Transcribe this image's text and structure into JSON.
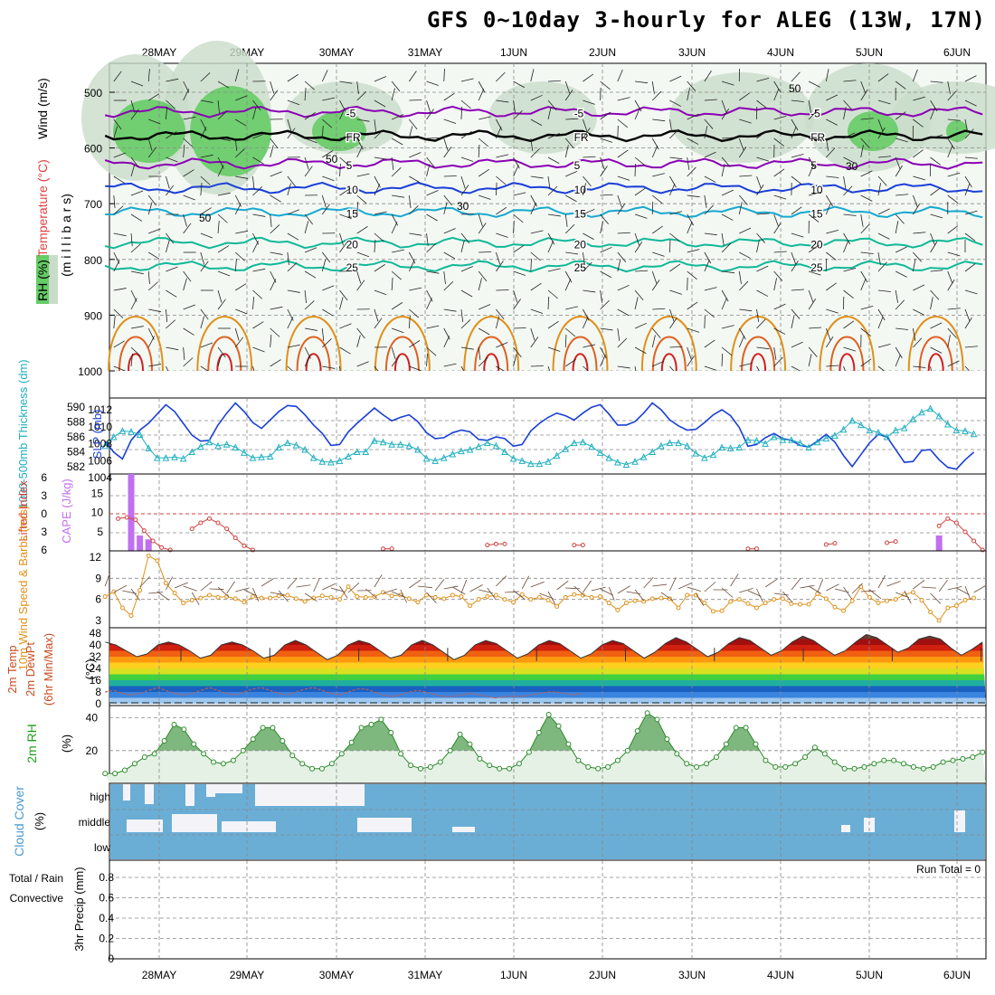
{
  "title": "GFS 0~10day 3-hourly for ALEG (13W, 17N)",
  "dates": [
    "28MAY",
    "29MAY",
    "30MAY",
    "31MAY",
    "1JUN",
    "2JUN",
    "3JUN",
    "4JUN",
    "5JUN",
    "6JUN"
  ],
  "colors": {
    "purple": "#8a00b4",
    "blue": "#1a3fd8",
    "cyan": "#18a8d0",
    "teal": "#10b898",
    "orange": "#e0901a",
    "red": "#d02020",
    "green": "#40c040",
    "cloud": "#6aaed6",
    "slp": "#1a3fd8",
    "thick": "#20b0c0",
    "cape": "#c070f0",
    "li": "#d04040",
    "wind10": "#e0901a",
    "rh": "#2a8a2a"
  },
  "chart_data": [
    {
      "type": "contour",
      "id": "upper-air",
      "ylabel_parts": [
        "RH (%)",
        "Temperature (°C)",
        "Wind (m/s)"
      ],
      "ylabel2": "(m i l l i b a r s)",
      "yticks": [
        500,
        600,
        700,
        800,
        900,
        1000
      ],
      "temperature_contours": [
        {
          "value": -5,
          "label": "-5",
          "color": "purple",
          "level_mb": 535
        },
        {
          "value": 0,
          "label": "FR",
          "color": "black",
          "level_mb": 578
        },
        {
          "value": 5,
          "label": "5",
          "color": "purple",
          "level_mb": 628
        },
        {
          "value": 10,
          "label": "10",
          "color": "blue",
          "level_mb": 672
        },
        {
          "value": 15,
          "label": "15",
          "color": "cyan",
          "level_mb": 715
        },
        {
          "value": 20,
          "label": "20",
          "color": "teal",
          "level_mb": 770
        },
        {
          "value": 25,
          "label": "25",
          "color": "teal",
          "level_mb": 812
        }
      ],
      "rh_labels": [
        "50",
        "30"
      ]
    },
    {
      "type": "line",
      "id": "slp-thickness",
      "ylabel_left": "1000-500mb Thickness (dm)",
      "ylabel_right": "SLP (mb)",
      "thickness_ticks": [
        582,
        584,
        586,
        588,
        590
      ],
      "slp_ticks": [
        1004,
        1006,
        1008,
        1010,
        1012
      ],
      "series": [
        {
          "name": "SLP (mb)",
          "values": [
            1008.3,
            1007.0,
            1006.2,
            1008.4,
            1009.6,
            1010.4,
            1011.5,
            1012.6,
            1011.8,
            1010.4,
            1009.0,
            1008.3,
            1008.4,
            1010.2,
            1011.6,
            1012.8,
            1011.8,
            1010.5,
            1009.8,
            1010.8,
            1011.8,
            1012.5,
            1012.4,
            1011.4,
            1010.2,
            1009.2,
            1007.8,
            1007.9,
            1009.4,
            1010.4,
            1011.3,
            1012.2,
            1011.4,
            1010.7,
            1011.1,
            1011.4,
            1010.6,
            1009.3,
            1008.6,
            1008.7,
            1009.3,
            1009.6,
            1009.4,
            1008.5,
            1008.4,
            1008.8,
            1008.6,
            1007.7,
            1007.9,
            1009.5,
            1010.4,
            1011.1,
            1011.6,
            1011.3,
            1010.8,
            1011.6,
            1012.3,
            1012.6,
            1011.5,
            1010.2,
            1010.2,
            1010.6,
            1011.6,
            1012.8,
            1012.0,
            1010.8,
            1010.1,
            1009.6,
            1009.7,
            1010.5,
            1011.4,
            1012.0,
            1011.3,
            1009.9,
            1007.7,
            1007.9,
            1008.7,
            1009.2,
            1008.6,
            1008.4,
            1007.8,
            1007.6,
            1008.3,
            1009.1,
            1008.2,
            1006.6,
            1005.3,
            1006.7,
            1008.1,
            1009.1,
            1008.8,
            1007.3,
            1005.8,
            1005.9,
            1007.2,
            1007.3,
            1006.1,
            1005.2,
            1005.0,
            1006.1,
            1007.0
          ]
        },
        {
          "name": "1000-500mb Thickness (dm)",
          "values": [
            584.8,
            586.0,
            586.8,
            586.7,
            586.3,
            584.5,
            583.2,
            583.2,
            583.3,
            583.1,
            584.0,
            584.7,
            585.3,
            584.8,
            585.0,
            584.6,
            583.9,
            583.2,
            583.3,
            583.4,
            584.6,
            585.2,
            584.9,
            584.3,
            583.2,
            582.7,
            582.6,
            582.8,
            583.4,
            584.0,
            584.0,
            585.5,
            585.3,
            585.0,
            585.0,
            584.8,
            584.3,
            583.1,
            582.8,
            583.2,
            583.7,
            584.1,
            584.3,
            584.7,
            585.2,
            584.8,
            584.0,
            583.1,
            582.8,
            582.4,
            582.4,
            582.7,
            583.5,
            584.4,
            585.2,
            585.3,
            584.7,
            583.9,
            583.2,
            582.6,
            582.3,
            582.7,
            583.3,
            584.0,
            584.8,
            585.2,
            585.2,
            584.8,
            583.8,
            583.2,
            583.6,
            584.6,
            584.5,
            584.6,
            585.6,
            585.5,
            585.1,
            586.0,
            585.6,
            585.6,
            585.2,
            584.6,
            585.3,
            585.8,
            586.2,
            587.0,
            588.2,
            587.6,
            586.9,
            586.6,
            586.0,
            586.9,
            587.2,
            588.4,
            589.3,
            589.8,
            588.8,
            587.7,
            586.9,
            586.8,
            586.4
          ]
        }
      ]
    },
    {
      "type": "bar",
      "id": "cape-li",
      "ylabel_left": "Lifted Index",
      "ylabel_right": "CAPE (J/kg)",
      "li_ticks": [
        -6,
        -3,
        0,
        3,
        6
      ],
      "cape_ticks": [
        5,
        10,
        15
      ],
      "cape_bars": [
        {
          "x": 3,
          "value": 20
        },
        {
          "x": 4,
          "value": 4
        },
        {
          "x": 5,
          "value": 3
        },
        {
          "x": 96,
          "value": 4
        }
      ],
      "li_segments": [
        [
          1.5,
          0.8,
          0.6,
          1.0,
          2.8,
          4.5,
          5.6,
          6.0
        ],
        [
          10,
          2.5,
          1.5,
          0.8,
          1.5,
          2.5,
          4.0,
          5.3,
          6.0
        ],
        [
          32,
          5.8,
          5.8
        ],
        [
          44,
          5.2,
          5.0,
          5.0
        ],
        [
          54,
          5.2,
          5.2
        ],
        [
          74,
          5.8,
          5.8
        ],
        [
          83,
          5.1,
          4.9
        ],
        [
          90,
          4.8,
          4.6
        ],
        [
          96,
          2.0,
          0.8,
          1.5,
          3.0,
          4.5,
          6.0
        ]
      ]
    },
    {
      "type": "line",
      "id": "wind10",
      "ylabel": "10m Wind Speed & Barbs (m/s)",
      "yticks": [
        3,
        6,
        9,
        12
      ],
      "series": [
        {
          "name": "10m Wind Speed",
          "values": [
            6.4,
            7.1,
            4.8,
            3.7,
            7.3,
            12.2,
            11.5,
            8.3,
            6.9,
            5.5,
            5.9,
            6.2,
            6.6,
            6.3,
            6.4,
            6.1,
            5.6,
            6.4,
            6.2,
            6.2,
            6.5,
            6.6,
            6.1,
            5.7,
            6.2,
            6.5,
            6.3,
            6.0,
            7.8,
            6.4,
            6.3,
            6.4,
            7.0,
            6.5,
            6.6,
            6.1,
            5.6,
            6.6,
            6.3,
            6.1,
            6.6,
            6.4,
            5.1,
            6.0,
            6.4,
            6.6,
            6.0,
            5.6,
            6.7,
            6.0,
            6.3,
            5.9,
            5.0,
            6.3,
            6.7,
            6.6,
            6.3,
            6.4,
            5.5,
            4.5,
            5.5,
            5.8,
            5.7,
            6.1,
            6.2,
            6.1,
            4.8,
            6.6,
            6.6,
            5.5,
            4.3,
            4.4,
            5.7,
            6.0,
            5.4,
            4.8,
            5.5,
            6.0,
            6.1,
            5.4,
            5.3,
            5.3,
            6.8,
            6.1,
            4.9,
            4.4,
            5.8,
            7.8,
            6.3,
            5.5,
            5.8,
            6.0,
            6.7,
            7.0,
            5.9,
            4.2,
            3.0,
            4.8,
            5.1,
            5.9,
            6.2
          ]
        }
      ]
    },
    {
      "type": "area",
      "id": "temp",
      "ylabel": [
        "2m Temp",
        "2m DewPt",
        "(6hr Min/Max)"
      ],
      "yunit": "(°C)",
      "yticks": [
        0,
        8,
        16,
        24,
        32,
        40,
        48
      ],
      "series": [
        {
          "name": "2m Temp",
          "values": [
            42,
            40,
            36,
            32,
            34,
            40,
            42,
            40,
            36,
            31,
            33,
            40,
            42,
            40,
            36,
            31,
            33,
            40,
            43,
            40,
            35,
            30,
            33,
            40,
            43,
            41,
            36,
            31,
            33,
            40,
            43,
            40,
            35,
            30,
            33,
            40,
            43,
            41,
            36,
            31,
            34,
            40,
            43,
            41,
            36,
            31,
            34,
            40,
            43,
            41,
            36,
            31,
            35,
            41,
            45,
            42,
            37,
            32,
            35,
            41,
            45,
            43,
            38,
            33,
            36,
            42,
            46,
            43,
            38,
            33,
            36,
            42,
            47,
            45,
            40,
            35,
            38,
            44,
            46,
            44,
            38,
            33,
            37,
            42
          ]
        },
        {
          "name": "2m DewPt",
          "values": [
            8,
            9,
            7,
            6,
            7,
            9,
            11,
            9,
            7,
            6,
            7,
            9,
            11,
            9,
            7,
            6,
            8,
            10,
            11,
            9,
            7,
            6,
            8,
            10,
            11,
            9,
            7,
            6,
            8,
            10,
            10,
            8,
            6,
            5,
            6,
            8,
            9,
            8,
            6,
            5,
            5,
            6,
            7,
            6,
            5,
            4,
            5,
            5,
            5,
            6,
            7,
            8,
            8,
            7,
            6,
            7
          ]
        }
      ]
    },
    {
      "type": "area",
      "id": "rh2m",
      "ylabel": "2m RH",
      "yunit": "(%)",
      "yticks": [
        20,
        40
      ],
      "series": [
        {
          "name": "2m RH",
          "values": [
            6,
            6,
            8,
            12,
            16,
            18,
            26,
            36,
            33,
            24,
            18,
            13,
            12,
            14,
            20,
            27,
            34,
            34,
            26,
            17,
            12,
            9,
            9,
            12,
            18,
            25,
            34,
            36,
            39,
            31,
            18,
            11,
            9,
            10,
            13,
            20,
            30,
            24,
            15,
            11,
            9,
            9,
            12,
            19,
            31,
            42,
            35,
            24,
            14,
            10,
            9,
            10,
            14,
            20,
            32,
            43,
            39,
            27,
            18,
            12,
            10,
            12,
            16,
            24,
            34,
            34,
            24,
            14,
            10,
            10,
            12,
            16,
            22,
            18,
            13,
            9,
            9,
            10,
            12,
            14,
            14,
            12,
            10,
            9,
            10,
            13,
            14,
            15,
            16,
            19
          ]
        }
      ]
    },
    {
      "type": "bar",
      "id": "cloud",
      "ylabel": "Cloud Cover",
      "yunit": "(%)",
      "levels": [
        "high",
        "middle",
        "low"
      ]
    },
    {
      "type": "bar",
      "id": "precip",
      "ylabel_left": "Total / Rain",
      "ylabel_left2": "Convective",
      "ylabel": "3hr Precip (mm)",
      "yticks": [
        "0",
        "0.2",
        "0.4",
        "0.6",
        "0.8"
      ],
      "run_total": "Run Total = 0",
      "values": []
    }
  ]
}
